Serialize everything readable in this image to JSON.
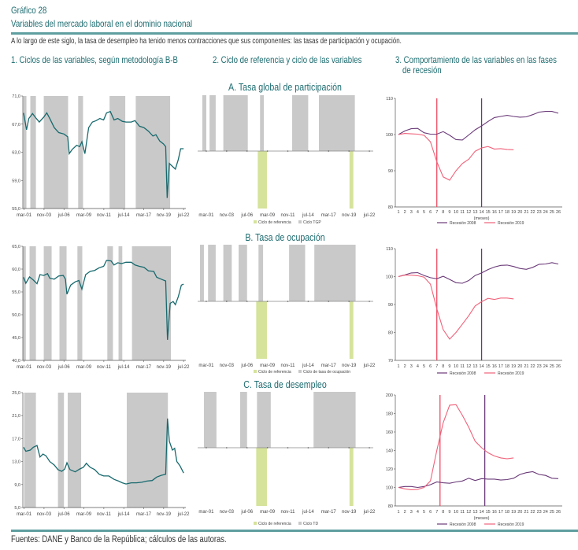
{
  "header": {
    "figure_label": "Gráfico 28",
    "title": "Variables del mercado laboral en el dominio nacional",
    "description": "A lo largo de este siglo, la tasa de desempleo ha tenido menos contracciones que sus componentes: las tasas de participación y ocupación."
  },
  "columns": {
    "c1": "1. Ciclos de las variables, según metodología B-B",
    "c2": "2. Ciclo de referencia y ciclo de las variables",
    "c3_line1": "3. Comportamiento de las variables en las fases",
    "c3_line2": "de recesión"
  },
  "footer": {
    "source": "Fuentes: DANE y Banco de la República; cálculos de las autoras."
  },
  "colors": {
    "series": "#17696e",
    "shade": "#c9c9c9",
    "reference": "#d5e39b",
    "r2008": "#6a3a78",
    "r2019": "#f0627a",
    "vline2019": "#ef4a62",
    "heading": "#1d6c70"
  },
  "chart_data": [
    {
      "id": "c1_tgp",
      "type": "line",
      "title": "",
      "ylim": [
        55,
        71
      ],
      "yticks": [
        "55,0",
        "59,0",
        "63,0",
        "67,0",
        "71,0"
      ],
      "ytick_values": [
        55,
        59,
        63,
        67,
        71
      ],
      "xticks": [
        "mar-01",
        "nov-03",
        "jul-06",
        "mar-09",
        "nov-11",
        "jul-14",
        "mar-17",
        "nov-19",
        "jul-22"
      ],
      "shaded_periods": [
        [
          2001.07,
          2001.48
        ],
        [
          2002.0,
          2002.75
        ],
        [
          2003.8,
          2007.05
        ],
        [
          2008.4,
          2009.05
        ],
        [
          2012.6,
          2014.7
        ],
        [
          2016.1,
          2020.7
        ]
      ],
      "series": [
        {
          "name": "TGP",
          "x": [
            2001.1,
            2001.5,
            2001.8,
            2002.3,
            2002.8,
            2003.2,
            2003.8,
            2004.2,
            2004.6,
            2005.2,
            2005.8,
            2006.5,
            2007.0,
            2007.2,
            2007.6,
            2008.2,
            2008.6,
            2008.9,
            2009.3,
            2009.8,
            2010.3,
            2010.8,
            2011.3,
            2011.8,
            2012.2,
            2012.7,
            2013.2,
            2013.7,
            2014.3,
            2014.8,
            2015.5,
            2016.0,
            2016.6,
            2017.2,
            2017.8,
            2018.4,
            2018.8,
            2019.3,
            2019.8,
            2020.1,
            2020.3,
            2020.6,
            2021.0,
            2021.4,
            2021.8,
            2022.1,
            2022.5
          ],
          "y": [
            68.6,
            66.2,
            67.8,
            68.5,
            67.8,
            67.3,
            68.0,
            68.6,
            67.8,
            66.5,
            65.8,
            65.6,
            65.2,
            62.8,
            63.4,
            64.0,
            63.8,
            64.5,
            62.8,
            66.5,
            67.3,
            67.5,
            67.8,
            67.6,
            68.6,
            68.8,
            67.6,
            67.8,
            67.4,
            67.3,
            67.3,
            67.5,
            66.7,
            66.5,
            66.0,
            65.3,
            65.5,
            64.6,
            64.2,
            63.8,
            56.5,
            61.4,
            61.0,
            60.6,
            62.0,
            63.5,
            63.5
          ]
        }
      ]
    },
    {
      "id": "c1_to",
      "type": "line",
      "title": "",
      "ylim": [
        40,
        65
      ],
      "yticks": [
        "40,0",
        "45,0",
        "50,0",
        "55,0",
        "60,0",
        "65,0"
      ],
      "ytick_values": [
        40,
        45,
        50,
        55,
        60,
        65
      ],
      "xticks": [
        "mar-01",
        "nov-03",
        "jul-06",
        "mar-09",
        "nov-11",
        "jul-14",
        "mar-17",
        "nov-19",
        "jul-22"
      ],
      "shaded_periods": [
        [
          2001.0,
          2001.4
        ],
        [
          2001.9,
          2002.75
        ],
        [
          2003.8,
          2004.85
        ],
        [
          2005.9,
          2006.85
        ],
        [
          2008.3,
          2008.95
        ],
        [
          2012.3,
          2013.05
        ],
        [
          2013.8,
          2014.3
        ],
        [
          2015.6,
          2020.8
        ]
      ],
      "series": [
        {
          "name": "TO",
          "x": [
            2001.1,
            2001.4,
            2001.9,
            2002.4,
            2002.9,
            2003.3,
            2003.8,
            2004.3,
            2004.6,
            2005.2,
            2005.8,
            2006.4,
            2006.7,
            2006.9,
            2007.4,
            2008.0,
            2008.5,
            2008.9,
            2009.4,
            2010.0,
            2010.6,
            2011.2,
            2011.8,
            2012.2,
            2012.8,
            2013.2,
            2013.7,
            2014.2,
            2014.8,
            2015.5,
            2016.0,
            2016.6,
            2017.2,
            2017.8,
            2018.5,
            2018.9,
            2019.5,
            2020.1,
            2020.35,
            2020.7,
            2021.1,
            2021.4,
            2021.8,
            2022.2,
            2022.5
          ],
          "y": [
            58.2,
            56.9,
            58.3,
            57.6,
            56.8,
            58.8,
            58.6,
            59.0,
            58.0,
            57.8,
            58.5,
            58.6,
            57.8,
            54.5,
            56.5,
            57.2,
            57.5,
            55.6,
            58.8,
            59.5,
            59.7,
            60.3,
            60.6,
            61.9,
            61.8,
            60.9,
            61.4,
            61.2,
            61.5,
            61.5,
            60.9,
            60.6,
            60.4,
            59.6,
            59.5,
            58.2,
            57.8,
            57.4,
            44.5,
            52.5,
            52.9,
            52.2,
            54.0,
            56.5,
            56.7
          ]
        }
      ]
    },
    {
      "id": "c1_td",
      "type": "line",
      "title": "",
      "ylim": [
        5,
        25
      ],
      "yticks": [
        "5,0",
        "9,0",
        "13,0",
        "17,0",
        "21,0",
        "25,0"
      ],
      "ytick_values": [
        5,
        9,
        13,
        17,
        21,
        25
      ],
      "xticks": [
        "mar-01",
        "nov-03",
        "jul-06",
        "mar-09",
        "nov-11",
        "jul-14",
        "mar-17",
        "nov-19",
        "jul-22"
      ],
      "shaded_periods": [
        [
          2001.17,
          2002.75
        ],
        [
          2005.7,
          2006.5
        ],
        [
          2007.0,
          2008.8
        ],
        [
          2014.9,
          2020.4
        ]
      ],
      "series": [
        {
          "name": "TD",
          "x": [
            2001.1,
            2001.4,
            2002.0,
            2002.4,
            2002.9,
            2003.3,
            2003.7,
            2004.1,
            2004.6,
            2005.2,
            2005.7,
            2006.2,
            2006.6,
            2006.9,
            2007.3,
            2008.0,
            2008.6,
            2009.1,
            2009.5,
            2010.0,
            2010.6,
            2011.2,
            2011.8,
            2012.5,
            2013.2,
            2013.8,
            2014.3,
            2014.8,
            2015.5,
            2016.2,
            2016.9,
            2017.6,
            2018.3,
            2018.9,
            2019.5,
            2020.1,
            2020.35,
            2020.6,
            2021.0,
            2021.3,
            2021.6,
            2022.0,
            2022.5
          ],
          "y": [
            15.5,
            14.8,
            15.0,
            15.5,
            15.8,
            13.8,
            14.3,
            14.0,
            13.0,
            12.4,
            11.6,
            11.3,
            11.7,
            12.8,
            11.6,
            11.2,
            11.7,
            12.0,
            12.7,
            12.0,
            11.6,
            10.8,
            10.5,
            10.5,
            9.9,
            9.6,
            9.3,
            9.1,
            9.3,
            9.3,
            9.4,
            9.6,
            9.7,
            10.3,
            10.6,
            10.8,
            20.5,
            16.5,
            15.0,
            15.3,
            13.0,
            12.3,
            11.0
          ]
        }
      ]
    },
    {
      "id": "c2_tgp",
      "type": "bar",
      "title": "A. Tasa global de participación",
      "xticks": [
        "mar-01",
        "nov-03",
        "jul-06",
        "mar-09",
        "nov-11",
        "jul-14",
        "mar-17",
        "nov-19",
        "jul-22"
      ],
      "legend": [
        "Ciclo de referencia",
        "Ciclo TGP"
      ],
      "reference_cycle": [
        [
          2007.9,
          2009.1
        ],
        [
          2019.9,
          2020.4
        ]
      ],
      "variable_cycle": [
        [
          2000.65,
          2001.17
        ],
        [
          2001.6,
          2002.4
        ],
        [
          2003.4,
          2006.6
        ],
        [
          2008.2,
          2008.7
        ],
        [
          2012.4,
          2014.5
        ],
        [
          2015.9,
          2020.6
        ]
      ]
    },
    {
      "id": "c2_to",
      "type": "bar",
      "title": "B. Tasa de ocupación",
      "xticks": [
        "mar-01",
        "nov-03",
        "jul-06",
        "mar-09",
        "nov-11",
        "jul-14",
        "mar-17",
        "nov-19",
        "jul-22"
      ],
      "legend": [
        "Ciclo de referencia",
        "Ciclo de tasa de ocupación"
      ],
      "reference_cycle": [
        [
          2007.7,
          2009.1
        ],
        [
          2019.9,
          2020.4
        ]
      ],
      "variable_cycle": [
        [
          2000.35,
          2000.86
        ],
        [
          2001.4,
          2002.4
        ],
        [
          2003.4,
          2004.5
        ],
        [
          2005.4,
          2006.5
        ],
        [
          2008.0,
          2008.6
        ],
        [
          2012.0,
          2014.1
        ],
        [
          2015.3,
          2020.7
        ]
      ]
    },
    {
      "id": "c2_td",
      "type": "bar",
      "title": "C. Tasa de desempleo",
      "xticks": [
        "mar-01",
        "nov-03",
        "jul-06",
        "mar-09",
        "nov-11",
        "jul-14",
        "mar-17",
        "nov-19",
        "jul-22"
      ],
      "legend": [
        "Ciclo de referencia",
        "Ciclo TD"
      ],
      "reference_cycle": [
        [
          2007.7,
          2009.1
        ],
        [
          2019.9,
          2020.4
        ]
      ],
      "variable_cycle": [
        [
          2000.86,
          2002.5
        ],
        [
          2005.6,
          2006.5
        ],
        [
          2007.8,
          2009.6
        ],
        [
          2015.2,
          2020.7
        ]
      ]
    },
    {
      "id": "c3_tgp",
      "type": "line",
      "xlabel": "(meses)",
      "ylim": [
        80,
        110
      ],
      "yticks": [
        "80",
        "90",
        "100",
        "110"
      ],
      "ytick_values": [
        80,
        90,
        100,
        110
      ],
      "vlines": [
        7,
        14
      ],
      "legend": [
        "Recesión 2008",
        "Recesión 2019"
      ],
      "series": [
        {
          "name": "Recesión 2008",
          "y": [
            100,
            101,
            101.6,
            101.7,
            100.5,
            100.1,
            100.1,
            100.8,
            99.8,
            98.6,
            98.5,
            99.9,
            101.3,
            102.4,
            103.6,
            104.7,
            105,
            105.3,
            105,
            104.8,
            104.9,
            105.5,
            106.2,
            106.4,
            106.4,
            105.9
          ]
        },
        {
          "name": "Recesión 2019",
          "y": [
            100,
            100.3,
            100.2,
            100.1,
            99.8,
            98,
            92.5,
            88.3,
            87.4,
            90,
            92,
            93.2,
            95.4,
            96.3,
            96.7,
            96,
            96.1,
            95.9,
            95.8
          ]
        }
      ]
    },
    {
      "id": "c3_to",
      "type": "line",
      "xlabel": "",
      "ylim": [
        70,
        110
      ],
      "yticks": [
        "70",
        "80",
        "90",
        "100",
        "110"
      ],
      "ytick_values": [
        70,
        80,
        90,
        100,
        110
      ],
      "vlines": [
        7,
        14
      ],
      "legend": [
        "Recesión 2008",
        "Recesión 2019"
      ],
      "series": [
        {
          "name": "Recesión 2008",
          "y": [
            100,
            100.6,
            101.3,
            101.4,
            100.4,
            99.6,
            99.2,
            100.1,
            99,
            97.8,
            97.6,
            98.6,
            100.4,
            101.3,
            102.5,
            103.4,
            104.0,
            104.1,
            103.6,
            102.9,
            102.6,
            103.3,
            104.4,
            104.5,
            105,
            104.5
          ]
        },
        {
          "name": "Recesión 2019",
          "y": [
            100,
            100.5,
            100.5,
            100.3,
            99.8,
            97.3,
            88.5,
            81,
            77.6,
            80,
            83,
            86,
            89.5,
            91,
            92.2,
            91.8,
            92.3,
            92.3,
            92
          ]
        }
      ]
    },
    {
      "id": "c3_td",
      "type": "line",
      "xlabel": "(meses)",
      "ylim": [
        80,
        200
      ],
      "yticks": [
        "80",
        "100",
        "120",
        "140",
        "160",
        "180",
        "200"
      ],
      "ytick_values": [
        80,
        100,
        120,
        140,
        160,
        180,
        200
      ],
      "vlines": [
        7.5,
        14.5
      ],
      "legend": [
        "Recesión 2008",
        "Recesión 2019"
      ],
      "series": [
        {
          "name": "Recesión 2008",
          "y": [
            100,
            101,
            101,
            100,
            101,
            103,
            106,
            105,
            104.5,
            106,
            107,
            110,
            107.5,
            109.5,
            109,
            109,
            108,
            108.5,
            110,
            114,
            116,
            117,
            114,
            113,
            110,
            109.5
          ]
        },
        {
          "name": "Recesión 2019",
          "y": [
            100,
            98.5,
            97.5,
            98,
            100,
            107,
            140,
            170,
            189,
            189.5,
            178,
            165,
            150,
            143,
            137.5,
            134,
            132,
            131,
            132
          ]
        }
      ]
    }
  ]
}
